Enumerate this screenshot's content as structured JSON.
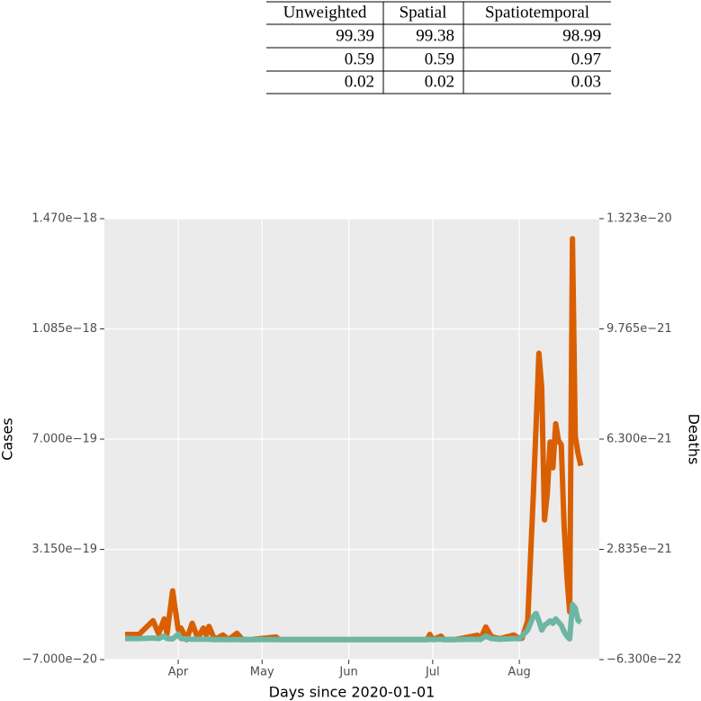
{
  "table": {
    "header": [
      "Unweighted",
      "Spatial",
      "Spatiotemporal"
    ],
    "rows": [
      [
        "99.39",
        "99.38",
        "98.99"
      ],
      [
        "0.59",
        "0.59",
        "0.97"
      ],
      [
        "0.02",
        "0.02",
        "0.03"
      ]
    ]
  },
  "chart_data": {
    "type": "line",
    "xlabel": "Days since 2020-01-01",
    "ylabel": "Cases",
    "y2label": "Deaths",
    "grid": true,
    "xlim": [
      64.6,
      241.6
    ],
    "xticks": [
      {
        "value": 91,
        "label": "Apr"
      },
      {
        "value": 121,
        "label": "May"
      },
      {
        "value": 152,
        "label": "Jun"
      },
      {
        "value": 182,
        "label": "Jul"
      },
      {
        "value": 213,
        "label": "Aug"
      }
    ],
    "ylim": [
      -7e-20,
      1.47e-18
    ],
    "yticks": [
      {
        "value": -7e-20,
        "label": "−7.000e−20"
      },
      {
        "value": 3.15e-19,
        "label": "3.150e−19"
      },
      {
        "value": 7e-19,
        "label": "7.000e−19"
      },
      {
        "value": 1.085e-18,
        "label": "1.085e−18"
      },
      {
        "value": 1.47e-18,
        "label": "1.470e−18"
      }
    ],
    "y2lim": [
      -6.3e-22,
      1.323e-20
    ],
    "y2ticks": [
      {
        "value": -6.3e-22,
        "label": "−6.300e−22"
      },
      {
        "value": 2.835e-21,
        "label": "2.835e−21"
      },
      {
        "value": 6.3e-21,
        "label": "6.300e−21"
      },
      {
        "value": 9.765e-21,
        "label": "9.765e−21"
      },
      {
        "value": 1.323e-20,
        "label": "1.323e−20"
      }
    ],
    "x": [
      72,
      77,
      82,
      84,
      86,
      87,
      89,
      91,
      92,
      94,
      96,
      98,
      100,
      101,
      102,
      104,
      107,
      109,
      112,
      114,
      117,
      126,
      127,
      130,
      150,
      180,
      181,
      182,
      185,
      186,
      190,
      198,
      199,
      201,
      203,
      206,
      211,
      213,
      214,
      216,
      218,
      219,
      220,
      221,
      222,
      223,
      224,
      225,
      226,
      227,
      228,
      229,
      230,
      231,
      232,
      233,
      234,
      235
    ],
    "series": [
      {
        "name": "Cases",
        "color": "#d95f02",
        "axis": "y",
        "values": [
          1.8e-20,
          1.8e-20,
          6.6e-20,
          2e-20,
          7.2e-20,
          2e-20,
          1.7e-19,
          3.5e-20,
          4e-20,
          0,
          5.7e-20,
          5e-21,
          4e-20,
          1.5e-20,
          4.6e-20,
          0,
          1.6e-20,
          0,
          2.2e-20,
          0,
          0,
          9e-21,
          0,
          0,
          0,
          0,
          1.8e-20,
          0,
          1.2e-20,
          0,
          0,
          1.5e-20,
          0,
          4.4e-20,
          1e-20,
          3e-21,
          1.6e-20,
          3e-21,
          5e-21,
          6.6e-20,
          5.06e-19,
          7.5e-19,
          1e-18,
          8.8e-19,
          4.18e-19,
          5.1e-19,
          6.9e-19,
          6e-19,
          7.54e-19,
          6.95e-19,
          6.8e-19,
          4e-19,
          2.23e-19,
          9.7e-20,
          1.4e-18,
          7.1e-19,
          6.5e-19,
          6.07e-19
        ]
      },
      {
        "name": "Deaths",
        "color": "#6db6a3",
        "axis": "y2",
        "values": [
          3e-23,
          3e-23,
          5e-23,
          3e-23,
          1.1e-22,
          3e-23,
          2e-23,
          1.7e-22,
          3e-23,
          2e-23,
          1e-23,
          1e-23,
          1e-23,
          1e-23,
          1e-23,
          0,
          0,
          0,
          0,
          0,
          0,
          0,
          0,
          0,
          0,
          0,
          1e-23,
          0,
          1e-23,
          0,
          0,
          1e-23,
          0,
          1.1e-22,
          3e-23,
          1e-23,
          3e-23,
          3e-23,
          1.1e-22,
          3e-22,
          7.3e-22,
          8.2e-22,
          5.9e-22,
          3e-22,
          4.5e-22,
          5.1e-22,
          5.9e-22,
          5.1e-22,
          6.5e-22,
          5.5e-22,
          4.5e-22,
          2.5e-22,
          1.1e-22,
          2e-23,
          1.1e-21,
          9.9e-22,
          6e-22,
          5.4e-22
        ]
      }
    ]
  }
}
